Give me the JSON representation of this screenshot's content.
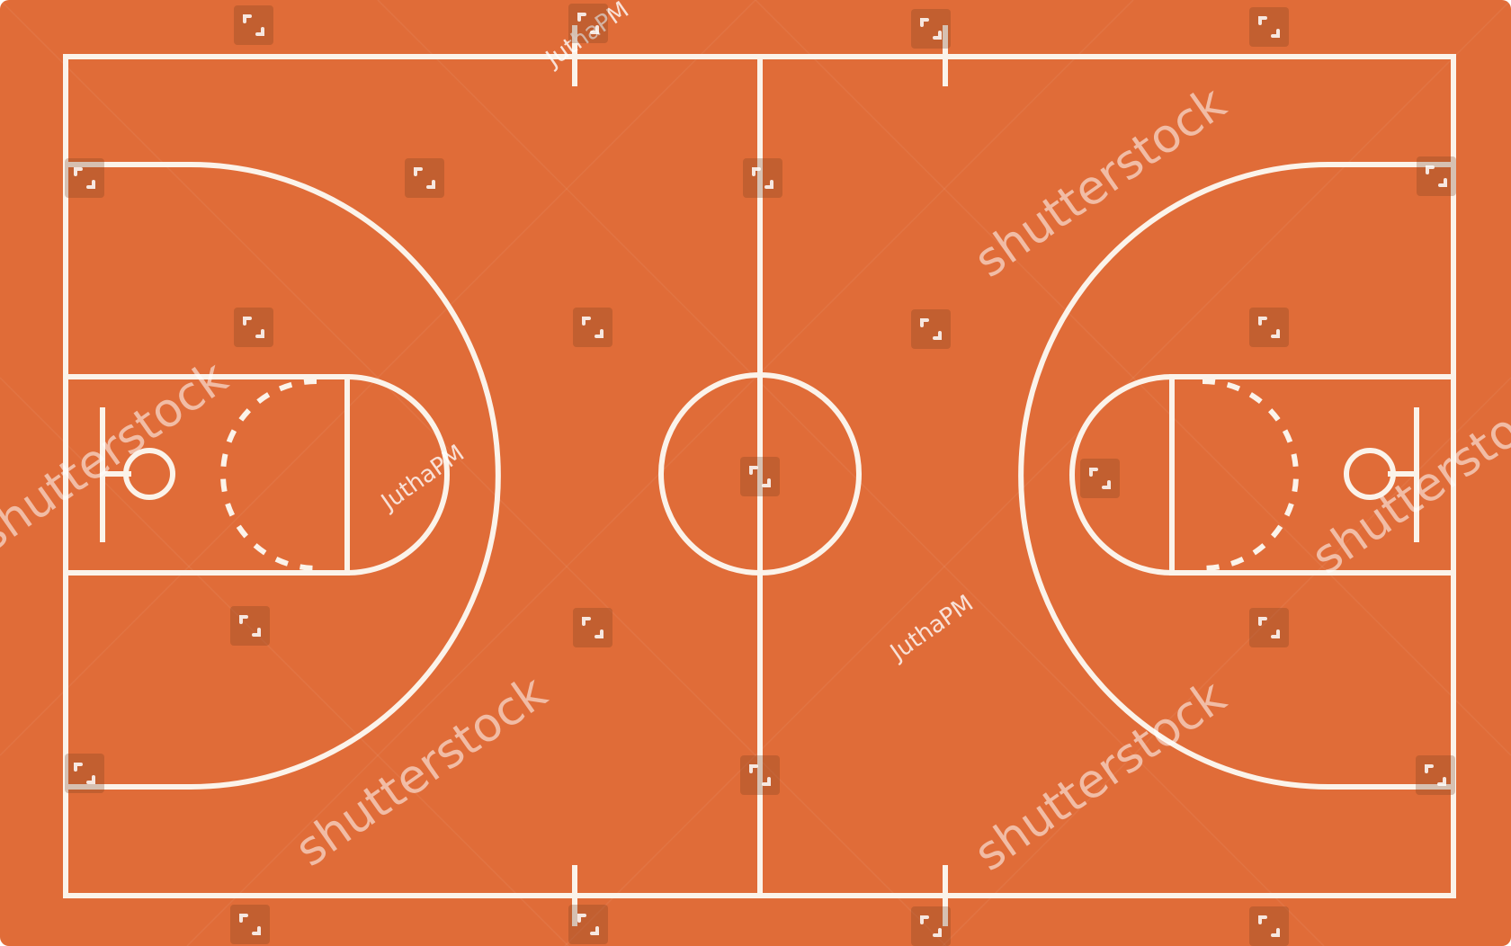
{
  "court": {
    "surface_color": "#e06c38",
    "line_color": "#fbf3ea"
  },
  "watermarks": {
    "brand": "shutterstock",
    "registered_mark": "®",
    "author": "JuthaPM",
    "icon": "shutterstock-logo-icon"
  }
}
